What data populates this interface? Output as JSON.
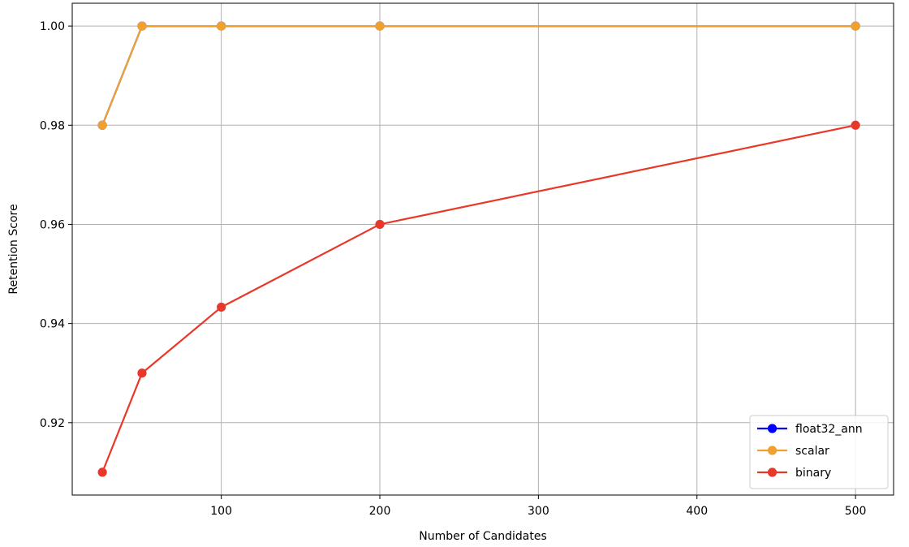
{
  "chart_data": {
    "type": "line",
    "title": "",
    "xlabel": "Number of Candidates",
    "ylabel": "Retention Score",
    "xlim": [
      6,
      524
    ],
    "ylim": [
      0.9054,
      1.0046
    ],
    "x_ticks": [
      100,
      200,
      300,
      400,
      500
    ],
    "y_ticks": [
      0.92,
      0.94,
      0.96,
      0.98,
      1.0
    ],
    "y_tick_labels": [
      "0.92",
      "0.94",
      "0.96",
      "0.98",
      "1.00"
    ],
    "grid": true,
    "legend_position": "lower right",
    "x": [
      25,
      50,
      100,
      200,
      500
    ],
    "series": [
      {
        "name": "float32_ann",
        "color": "#0000ff",
        "values": [
          0.98,
          1.0,
          1.0,
          1.0,
          1.0
        ]
      },
      {
        "name": "scalar",
        "color": "#f0a030",
        "values": [
          0.98,
          1.0,
          1.0,
          1.0,
          1.0
        ]
      },
      {
        "name": "binary",
        "color": "#e8382a",
        "values": [
          0.91,
          0.93,
          0.9433,
          0.96,
          0.98
        ]
      }
    ]
  }
}
